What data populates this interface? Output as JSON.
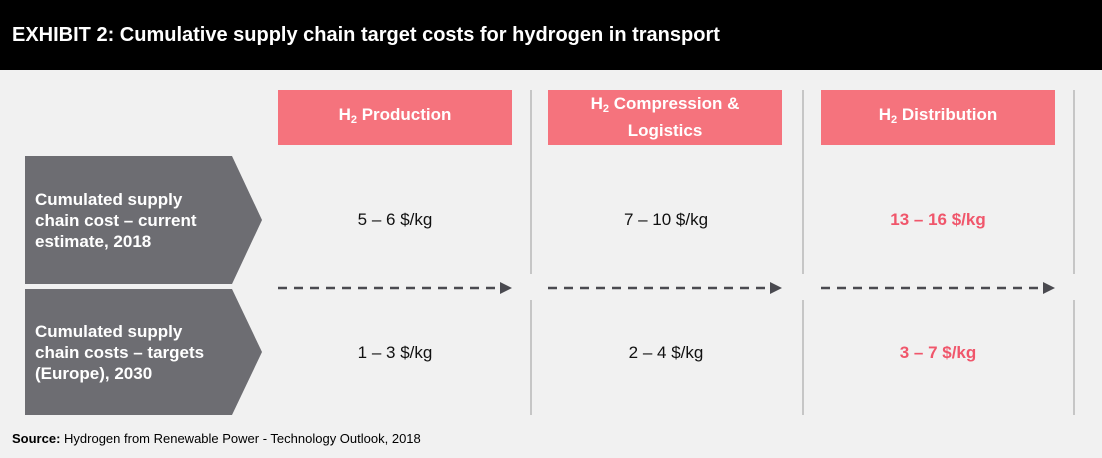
{
  "header": {
    "title": "EXHIBIT 2: Cumulative supply chain target costs for hydrogen in transport"
  },
  "columns": [
    {
      "pre": "H",
      "sub": "2",
      "post": " Production"
    },
    {
      "pre": "H",
      "sub": "2",
      "post": " Compression & Logistics"
    },
    {
      "pre": "H",
      "sub": "2",
      "post": " Distribution"
    }
  ],
  "rows": [
    {
      "label": "Cumulated supply chain cost – current estimate, 2018",
      "values": [
        "5 – 6 $/kg",
        "7 – 10 $/kg",
        "13 – 16 $/kg"
      ]
    },
    {
      "label": "Cumulated supply chain costs – targets (Europe), 2030",
      "values": [
        "1 – 3 $/kg",
        "2 – 4 $/kg",
        "3 – 7 $/kg"
      ]
    }
  ],
  "source": {
    "label": "Source:",
    "text": " Hydrogen from Renewable Power - Technology Outlook, 2018"
  },
  "colors": {
    "header_bg": "#000000",
    "accent": "#f5737d",
    "highlight_text": "#f0566b",
    "row_label_bg": "#6d6d72",
    "divider": "#c6c6c6",
    "arrow": "#4a4a50"
  },
  "icons": {
    "arrow": "dashed-arrow-right-icon"
  }
}
